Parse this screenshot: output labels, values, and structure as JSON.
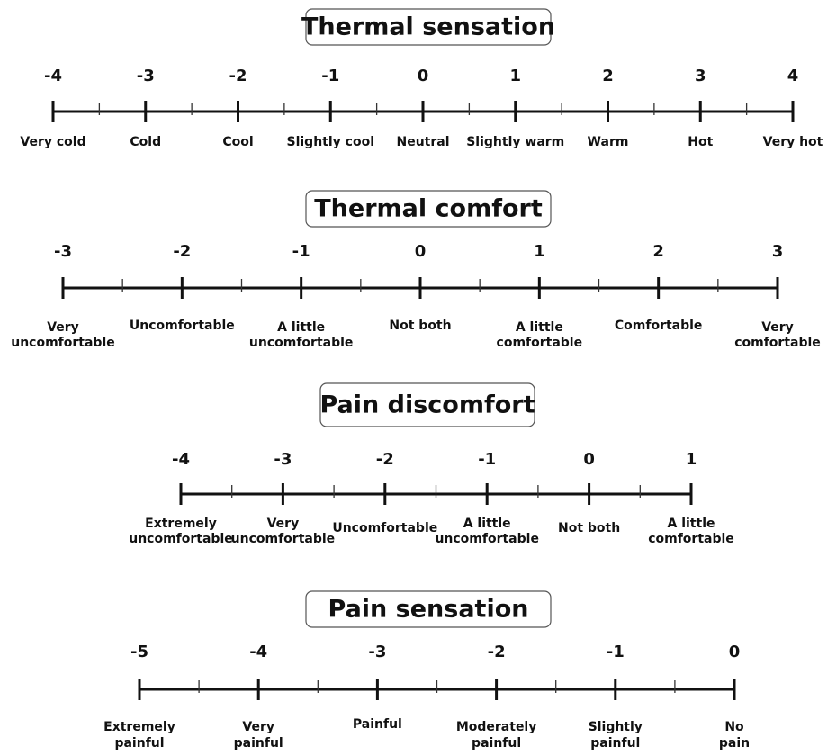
{
  "scales": [
    {
      "title": "Thermal sensation",
      "ticks": [
        {
          "value": -4,
          "label": [
            "Very cold"
          ]
        },
        {
          "value": -3,
          "label": [
            "Cold"
          ]
        },
        {
          "value": -2,
          "label": [
            "Cool"
          ]
        },
        {
          "value": -1,
          "label": [
            "Slightly cool"
          ]
        },
        {
          "value": 0,
          "label": [
            "Neutral"
          ]
        },
        {
          "value": 1,
          "label": [
            "Slightly warm"
          ]
        },
        {
          "value": 2,
          "label": [
            "Warm"
          ]
        },
        {
          "value": 3,
          "label": [
            "Hot"
          ]
        },
        {
          "value": 4,
          "label": [
            "Very hot"
          ]
        }
      ]
    },
    {
      "title": "Thermal comfort",
      "ticks": [
        {
          "value": -3,
          "label": [
            "Very",
            "uncomfortable"
          ]
        },
        {
          "value": -2,
          "label": [
            "Uncomfortable"
          ]
        },
        {
          "value": -1,
          "label": [
            "A little",
            "uncomfortable"
          ]
        },
        {
          "value": 0,
          "label": [
            "Not both"
          ]
        },
        {
          "value": 1,
          "label": [
            "A little",
            "comfortable"
          ]
        },
        {
          "value": 2,
          "label": [
            "Comfortable"
          ]
        },
        {
          "value": 3,
          "label": [
            "Very",
            "comfortable"
          ]
        }
      ]
    },
    {
      "title": "Pain discomfort",
      "ticks": [
        {
          "value": -4,
          "label": [
            "Extremely",
            "uncomfortable"
          ]
        },
        {
          "value": -3,
          "label": [
            "Very",
            "uncomfortable"
          ]
        },
        {
          "value": -2,
          "label": [
            "Uncomfortable"
          ]
        },
        {
          "value": -1,
          "label": [
            "A little",
            "uncomfortable"
          ]
        },
        {
          "value": 0,
          "label": [
            "Not both"
          ]
        },
        {
          "value": 1,
          "label": [
            "A little",
            "comfortable"
          ]
        }
      ]
    },
    {
      "title": "Pain sensation",
      "ticks": [
        {
          "value": -5,
          "label": [
            "Extremely",
            "painful"
          ]
        },
        {
          "value": -4,
          "label": [
            "Very",
            "painful"
          ]
        },
        {
          "value": -3,
          "label": [
            "Painful"
          ]
        },
        {
          "value": -2,
          "label": [
            "Moderately",
            "painful"
          ]
        },
        {
          "value": -1,
          "label": [
            "Slightly",
            "painful"
          ]
        },
        {
          "value": 0,
          "label": [
            "No",
            "pain"
          ]
        }
      ]
    }
  ]
}
